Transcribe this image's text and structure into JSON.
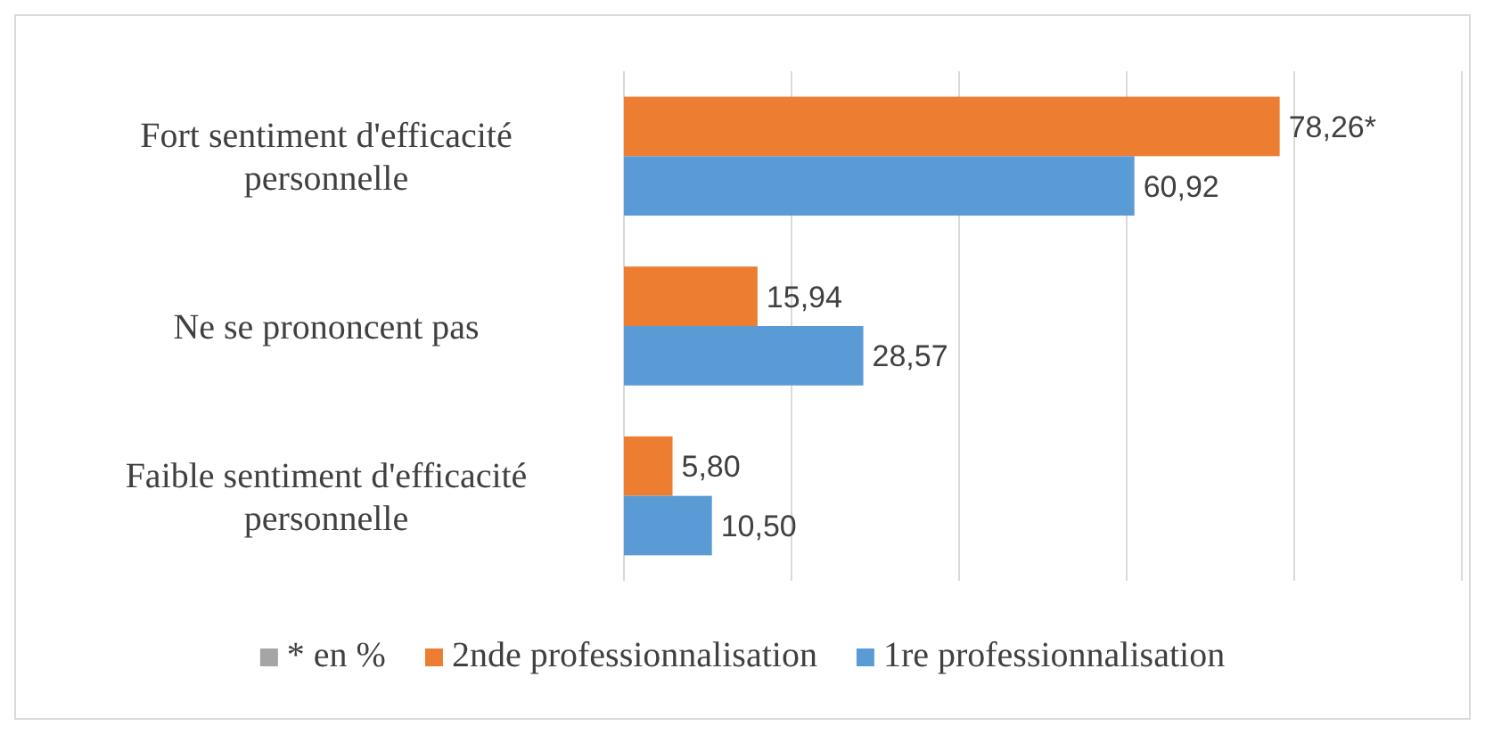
{
  "chart_data": {
    "type": "bar",
    "orientation": "horizontal",
    "categories": [
      "Fort sentiment d'efficacité personnelle",
      "Ne se prononcent pas",
      "Faible sentiment d'efficacité personnelle"
    ],
    "series": [
      {
        "name": "* en %",
        "color": "#a5a5a5",
        "values": [
          null,
          null,
          null
        ]
      },
      {
        "name": "2nde professionnalisation",
        "color": "#ed7d31",
        "values": [
          78.26,
          15.94,
          5.8
        ],
        "value_labels": [
          "78,26*",
          "15,94",
          "5,80"
        ]
      },
      {
        "name": "1re professionnalisation",
        "color": "#5b9bd5",
        "values": [
          60.92,
          28.57,
          10.5
        ],
        "value_labels": [
          "60,92",
          "28,57",
          "10,50"
        ]
      }
    ],
    "xlim": [
      0,
      100
    ],
    "xticks": [
      {
        "value": 0,
        "label": null
      },
      {
        "value": 20,
        "label": null
      },
      {
        "value": 40,
        "label": null
      },
      {
        "value": 60,
        "label": null
      },
      {
        "value": 80,
        "label": null
      },
      {
        "value": 100,
        "label": null
      }
    ],
    "grid": "x",
    "legend": "bottom"
  }
}
